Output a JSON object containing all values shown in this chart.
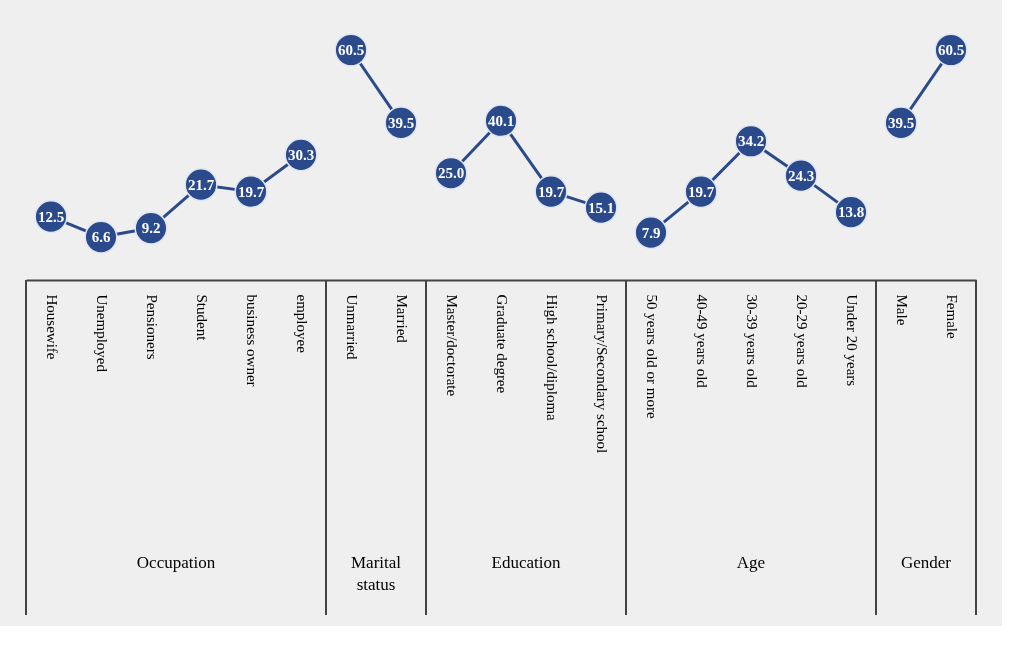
{
  "chart_data": {
    "type": "line",
    "categories": [
      "Housewife",
      "Unemployed",
      "Pensioners",
      "Student",
      "business owner",
      "employee",
      "Unmarried",
      "Married",
      "Master/doctorate",
      "Graduate degree",
      "High school/diploma",
      "Primary/Secondary school",
      "50 years old or more",
      "40-49 years old",
      "30-39 years old",
      "20-29 years old",
      "Under 20 years",
      "Male",
      "Female"
    ],
    "series": [
      {
        "color": "#2b4a8c",
        "values": [
          12.5,
          6.6,
          9.2,
          21.7,
          19.7,
          30.3,
          null,
          null,
          null,
          null,
          null,
          null,
          null,
          null,
          null,
          null,
          null,
          null,
          null
        ]
      },
      {
        "color": "#2b4a8c",
        "values": [
          null,
          null,
          null,
          null,
          null,
          null,
          60.5,
          39.5,
          null,
          null,
          null,
          null,
          null,
          null,
          null,
          null,
          null,
          null,
          null
        ]
      },
      {
        "color": "#2b4a8c",
        "values": [
          null,
          null,
          null,
          null,
          null,
          null,
          null,
          null,
          25.0,
          40.1,
          19.7,
          15.1,
          null,
          null,
          null,
          null,
          null,
          null,
          null
        ],
        "value_labels": [
          null,
          null,
          null,
          null,
          null,
          null,
          null,
          null,
          "25.0",
          "40.1",
          "19.7",
          "15.1",
          null,
          null,
          null,
          null,
          null,
          null,
          null
        ]
      },
      {
        "color": "#2b4a8c",
        "values": [
          null,
          null,
          null,
          null,
          null,
          null,
          null,
          null,
          null,
          null,
          null,
          null,
          7.9,
          19.7,
          34.2,
          24.3,
          13.8,
          null,
          null
        ]
      },
      {
        "color": "#2b4a8c",
        "values": [
          null,
          null,
          null,
          null,
          null,
          null,
          null,
          null,
          null,
          null,
          null,
          null,
          null,
          null,
          null,
          null,
          null,
          39.5,
          60.5
        ]
      }
    ],
    "annotations": [
      "Occupation",
      "Marital\nstatus",
      "Education",
      "Age",
      "Gender"
    ],
    "marker": "circle",
    "data_labels": true,
    "tick_labels": "x"
  }
}
